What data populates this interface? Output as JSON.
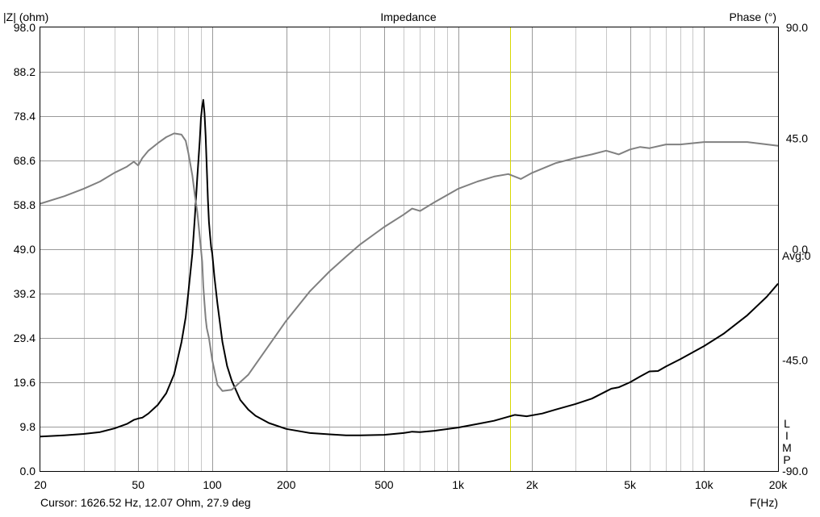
{
  "chart_data": {
    "type": "line",
    "title": "Impedance",
    "ylabel_left": "|Z| (ohm)",
    "ylabel_right": "Phase (°)",
    "xlabel": "F(Hz)",
    "x_scale": "log",
    "xlim": [
      20,
      20000
    ],
    "ylim_left": [
      0.0,
      98.0
    ],
    "ylim_right": [
      -90,
      90
    ],
    "x_ticks": [
      {
        "value": 20,
        "label": "20"
      },
      {
        "value": 50,
        "label": "50"
      },
      {
        "value": 100,
        "label": "100"
      },
      {
        "value": 200,
        "label": "200"
      },
      {
        "value": 500,
        "label": "500"
      },
      {
        "value": 1000,
        "label": "1k"
      },
      {
        "value": 2000,
        "label": "2k"
      },
      {
        "value": 5000,
        "label": "5k"
      },
      {
        "value": 10000,
        "label": "10k"
      },
      {
        "value": 20000,
        "label": "20k"
      }
    ],
    "y_ticks_left": [
      "0.0",
      "9.8",
      "19.6",
      "29.4",
      "39.2",
      "49.0",
      "58.8",
      "68.6",
      "78.4",
      "88.2",
      "98.0"
    ],
    "y_ticks_right": [
      {
        "value": 90,
        "label": "90.0"
      },
      {
        "value": 45,
        "label": "45.0"
      },
      {
        "value": 0,
        "label": "0.0"
      },
      {
        "value": -45,
        "label": "-45.0"
      },
      {
        "value": -90,
        "label": "-90.0"
      }
    ],
    "right_annotation": "Avg:0",
    "side_label": [
      "L",
      "I",
      "M",
      "P"
    ],
    "grid": true,
    "cursor": {
      "x": 1626.52,
      "color": "#d8d800",
      "readout": "Cursor: 1626.52 Hz, 12.07 Ohm, 27.9 deg"
    },
    "series": [
      {
        "axis": "left",
        "color": "#000000",
        "points": [
          [
            20,
            7.6
          ],
          [
            25,
            7.9
          ],
          [
            30,
            8.2
          ],
          [
            35,
            8.6
          ],
          [
            40,
            9.4
          ],
          [
            45,
            10.4
          ],
          [
            48,
            11.3
          ],
          [
            50,
            11.6
          ],
          [
            52,
            11.8
          ],
          [
            55,
            12.7
          ],
          [
            60,
            14.6
          ],
          [
            65,
            17.2
          ],
          [
            70,
            21.4
          ],
          [
            75,
            28.5
          ],
          [
            78,
            34
          ],
          [
            80,
            39.5
          ],
          [
            83,
            48
          ],
          [
            85,
            56
          ],
          [
            87,
            65
          ],
          [
            89,
            73
          ],
          [
            90,
            78
          ],
          [
            91,
            80.5
          ],
          [
            92,
            82
          ],
          [
            93,
            79
          ],
          [
            94,
            74
          ],
          [
            95,
            67
          ],
          [
            96,
            60
          ],
          [
            97,
            55
          ],
          [
            98,
            52
          ],
          [
            99,
            49.5
          ],
          [
            100,
            48
          ],
          [
            102,
            43
          ],
          [
            105,
            37
          ],
          [
            110,
            28.5
          ],
          [
            115,
            23.2
          ],
          [
            120,
            20
          ],
          [
            130,
            15.7
          ],
          [
            140,
            13.6
          ],
          [
            150,
            12.2
          ],
          [
            170,
            10.6
          ],
          [
            200,
            9.3
          ],
          [
            250,
            8.4
          ],
          [
            300,
            8.1
          ],
          [
            350,
            7.9
          ],
          [
            400,
            7.9
          ],
          [
            500,
            8.0
          ],
          [
            600,
            8.4
          ],
          [
            650,
            8.7
          ],
          [
            700,
            8.6
          ],
          [
            800,
            8.9
          ],
          [
            1000,
            9.6
          ],
          [
            1200,
            10.4
          ],
          [
            1400,
            11.1
          ],
          [
            1600,
            12.0
          ],
          [
            1700,
            12.4
          ],
          [
            1900,
            12.1
          ],
          [
            2200,
            12.7
          ],
          [
            2500,
            13.6
          ],
          [
            3000,
            14.8
          ],
          [
            3500,
            16.0
          ],
          [
            4000,
            17.6
          ],
          [
            4200,
            18.2
          ],
          [
            4500,
            18.5
          ],
          [
            5000,
            19.6
          ],
          [
            5500,
            20.9
          ],
          [
            6000,
            22.0
          ],
          [
            6500,
            22.1
          ],
          [
            7000,
            23.1
          ],
          [
            8000,
            24.7
          ],
          [
            10000,
            27.6
          ],
          [
            12000,
            30.3
          ],
          [
            15000,
            34.4
          ],
          [
            18000,
            38.5
          ],
          [
            20000,
            41.4
          ]
        ]
      },
      {
        "axis": "right",
        "color": "#808080",
        "points": [
          [
            20,
            18.5
          ],
          [
            25,
            21.5
          ],
          [
            30,
            24.5
          ],
          [
            35,
            27.5
          ],
          [
            40,
            31
          ],
          [
            45,
            33.5
          ],
          [
            48,
            35.5
          ],
          [
            50,
            34
          ],
          [
            52,
            37
          ],
          [
            55,
            40
          ],
          [
            60,
            43
          ],
          [
            65,
            45.5
          ],
          [
            70,
            47
          ],
          [
            75,
            46.5
          ],
          [
            78,
            44
          ],
          [
            80,
            39
          ],
          [
            83,
            30
          ],
          [
            85,
            22
          ],
          [
            87,
            15
          ],
          [
            89,
            5
          ],
          [
            90,
            0
          ],
          [
            91,
            -5
          ],
          [
            92,
            -15
          ],
          [
            93,
            -22
          ],
          [
            94,
            -28
          ],
          [
            95,
            -32
          ],
          [
            97,
            -36
          ],
          [
            100,
            -45
          ],
          [
            105,
            -55
          ],
          [
            110,
            -57.5
          ],
          [
            120,
            -57
          ],
          [
            140,
            -51
          ],
          [
            170,
            -39
          ],
          [
            200,
            -29
          ],
          [
            250,
            -17
          ],
          [
            300,
            -9
          ],
          [
            350,
            -3
          ],
          [
            400,
            2
          ],
          [
            500,
            9
          ],
          [
            600,
            14
          ],
          [
            650,
            16.5
          ],
          [
            700,
            15.5
          ],
          [
            800,
            19
          ],
          [
            1000,
            24.5
          ],
          [
            1200,
            27.5
          ],
          [
            1400,
            29.5
          ],
          [
            1600,
            30.5
          ],
          [
            1800,
            28.5
          ],
          [
            2000,
            31
          ],
          [
            2500,
            35
          ],
          [
            3000,
            37
          ],
          [
            3500,
            38.5
          ],
          [
            4000,
            40
          ],
          [
            4500,
            38.5
          ],
          [
            5000,
            40.5
          ],
          [
            5500,
            41.5
          ],
          [
            6000,
            41
          ],
          [
            7000,
            42.5
          ],
          [
            8000,
            42.5
          ],
          [
            10000,
            43.5
          ],
          [
            15000,
            43.5
          ],
          [
            20000,
            42
          ]
        ]
      }
    ]
  }
}
